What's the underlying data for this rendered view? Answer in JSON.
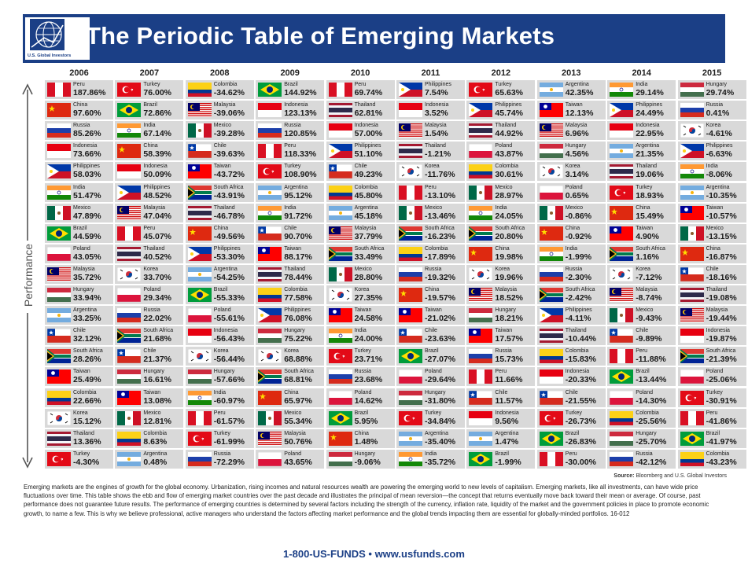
{
  "header": {
    "title": "The Periodic Table of Emerging Markets",
    "logo_text": "U.S. Global Investors",
    "bg_color": "#1b3f86"
  },
  "axis_label": "Performance",
  "years": [
    "2006",
    "2007",
    "2008",
    "2009",
    "2010",
    "2011",
    "2012",
    "2013",
    "2014",
    "2015"
  ],
  "columns": [
    [
      [
        "Peru",
        "187.86%"
      ],
      [
        "China",
        "97.60%"
      ],
      [
        "Russia",
        "85.26%"
      ],
      [
        "Indonesia",
        "73.66%"
      ],
      [
        "Philippines",
        "58.03%"
      ],
      [
        "India",
        "51.47%"
      ],
      [
        "Mexico",
        "47.89%"
      ],
      [
        "Brazil",
        "44.59%"
      ],
      [
        "Poland",
        "43.05%"
      ],
      [
        "Malaysia",
        "35.72%"
      ],
      [
        "Hungary",
        "33.94%"
      ],
      [
        "Argentina",
        "33.25%"
      ],
      [
        "Chile",
        "32.12%"
      ],
      [
        "South Africa",
        "28.26%"
      ],
      [
        "Taiwan",
        "25.49%"
      ],
      [
        "Colombia",
        "22.66%"
      ],
      [
        "Korea",
        "15.12%"
      ],
      [
        "Thailand",
        "13.36%"
      ],
      [
        "Turkey",
        "-4.30%"
      ]
    ],
    [
      [
        "Turkey",
        "76.00%"
      ],
      [
        "Brazil",
        "72.86%"
      ],
      [
        "India",
        "67.14%"
      ],
      [
        "China",
        "58.39%"
      ],
      [
        "Indonesia",
        "50.09%"
      ],
      [
        "Philippines",
        "48.52%"
      ],
      [
        "Malaysia",
        "47.04%"
      ],
      [
        "Peru",
        "45.07%"
      ],
      [
        "Thailand",
        "40.52%"
      ],
      [
        "Korea",
        "33.70%"
      ],
      [
        "Poland",
        "29.34%"
      ],
      [
        "Russia",
        "22.02%"
      ],
      [
        "South Africa",
        "21.68%"
      ],
      [
        "Chile",
        "21.37%"
      ],
      [
        "Hungary",
        "16.61%"
      ],
      [
        "Taiwan",
        "13.08%"
      ],
      [
        "Mexico",
        "12.81%"
      ],
      [
        "Colombia",
        "8.63%"
      ],
      [
        "Argentina",
        "0.48%"
      ]
    ],
    [
      [
        "Colombia",
        "-34.62%"
      ],
      [
        "Malaysia",
        "-39.06%"
      ],
      [
        "Mexico",
        "-39.28%"
      ],
      [
        "Chile",
        "-39.63%"
      ],
      [
        "Taiwan",
        "-43.72%"
      ],
      [
        "South Africa",
        "-43.91%"
      ],
      [
        "Thailand",
        "-46.78%"
      ],
      [
        "China",
        "-49.56%"
      ],
      [
        "Philippines",
        "-53.30%"
      ],
      [
        "Argentina",
        "-54.25%"
      ],
      [
        "Brazil",
        "-55.33%"
      ],
      [
        "Poland",
        "-55.61%"
      ],
      [
        "Indonesia",
        "-56.43%"
      ],
      [
        "Korea",
        "-56.44%"
      ],
      [
        "Hungary",
        "-57.66%"
      ],
      [
        "India",
        "-60.97%"
      ],
      [
        "Peru",
        "-61.57%"
      ],
      [
        "Turkey",
        "-61.99%"
      ],
      [
        "Russia",
        "-72.29%"
      ]
    ],
    [
      [
        "Brazil",
        "144.92%"
      ],
      [
        "Indonesia",
        "123.13%"
      ],
      [
        "Russia",
        "120.85%"
      ],
      [
        "Peru",
        "118.33%"
      ],
      [
        "Turkey",
        "108.90%"
      ],
      [
        "Argentina",
        "95.12%"
      ],
      [
        "India",
        "91.72%"
      ],
      [
        "Chile",
        "90.70%"
      ],
      [
        "Taiwan",
        "88.17%"
      ],
      [
        "Thailand",
        "78.44%"
      ],
      [
        "Colombia",
        "77.58%"
      ],
      [
        "Philippines",
        "76.08%"
      ],
      [
        "Hungary",
        "75.22%"
      ],
      [
        "Korea",
        "68.88%"
      ],
      [
        "South Africa",
        "68.81%"
      ],
      [
        "China",
        "65.97%"
      ],
      [
        "Mexico",
        "55.34%"
      ],
      [
        "Malaysia",
        "50.76%"
      ],
      [
        "Poland",
        "43.65%"
      ]
    ],
    [
      [
        "Peru",
        "69.74%"
      ],
      [
        "Thailand",
        "62.81%"
      ],
      [
        "Indonesia",
        "57.00%"
      ],
      [
        "Philippines",
        "51.10%"
      ],
      [
        "Chile",
        "49.23%"
      ],
      [
        "Colombia",
        "45.80%"
      ],
      [
        "Argentina",
        "45.18%"
      ],
      [
        "Malaysia",
        "37.79%"
      ],
      [
        "South Africa",
        "33.49%"
      ],
      [
        "Mexico",
        "28.80%"
      ],
      [
        "Korea",
        "27.35%"
      ],
      [
        "Taiwan",
        "24.58%"
      ],
      [
        "India",
        "24.00%"
      ],
      [
        "Turkey",
        "23.71%"
      ],
      [
        "Russia",
        "23.68%"
      ],
      [
        "Poland",
        "14.62%"
      ],
      [
        "Brazil",
        "5.95%"
      ],
      [
        "China",
        "1.48%"
      ],
      [
        "Hungary",
        "-9.06%"
      ]
    ],
    [
      [
        "Philippines",
        "7.54%"
      ],
      [
        "Indonesia",
        "3.52%"
      ],
      [
        "Malaysia",
        "1.54%"
      ],
      [
        "Thailand",
        "-1.21%"
      ],
      [
        "Korea",
        "-11.76%"
      ],
      [
        "Peru",
        "-13.10%"
      ],
      [
        "Mexico",
        "-13.46%"
      ],
      [
        "South Africa",
        "-16.23%"
      ],
      [
        "Colombia",
        "-17.89%"
      ],
      [
        "Russia",
        "-19.32%"
      ],
      [
        "China",
        "-19.57%"
      ],
      [
        "Taiwan",
        "-21.02%"
      ],
      [
        "Chile",
        "-23.63%"
      ],
      [
        "Brazil",
        "-27.07%"
      ],
      [
        "Poland",
        "-29.64%"
      ],
      [
        "Hungary",
        "-31.80%"
      ],
      [
        "Turkey",
        "-34.84%"
      ],
      [
        "Argentina",
        "-35.40%"
      ],
      [
        "India",
        "-35.72%"
      ]
    ],
    [
      [
        "Turkey",
        "65.63%"
      ],
      [
        "Philippines",
        "45.74%"
      ],
      [
        "Thailand",
        "44.92%"
      ],
      [
        "Poland",
        "43.87%"
      ],
      [
        "Colombia",
        "30.61%"
      ],
      [
        "Mexico",
        "28.97%"
      ],
      [
        "India",
        "24.05%"
      ],
      [
        "South Africa",
        "20.80%"
      ],
      [
        "China",
        "19.98%"
      ],
      [
        "Korea",
        "19.96%"
      ],
      [
        "Malaysia",
        "18.52%"
      ],
      [
        "Hungary",
        "18.21%"
      ],
      [
        "Taiwan",
        "17.57%"
      ],
      [
        "Russia",
        "15.73%"
      ],
      [
        "Peru",
        "11.66%"
      ],
      [
        "Chile",
        "11.57%"
      ],
      [
        "Indonesia",
        "9.56%"
      ],
      [
        "Argentina",
        "1.47%"
      ],
      [
        "Brazil",
        "-1.99%"
      ]
    ],
    [
      [
        "Argentina",
        "42.35%"
      ],
      [
        "Taiwan",
        "12.13%"
      ],
      [
        "Malaysia",
        "6.96%"
      ],
      [
        "Hungary",
        "4.56%"
      ],
      [
        "Korea",
        "3.14%"
      ],
      [
        "Poland",
        "0.65%"
      ],
      [
        "Mexico",
        "-0.86%"
      ],
      [
        "China",
        "-0.92%"
      ],
      [
        "India",
        "-1.99%"
      ],
      [
        "Russia",
        "-2.30%"
      ],
      [
        "South Africa",
        "-2.42%"
      ],
      [
        "Philippines",
        "-4.11%"
      ],
      [
        "Thailand",
        "-10.44%"
      ],
      [
        "Colombia",
        "-15.83%"
      ],
      [
        "Indonesia",
        "-20.33%"
      ],
      [
        "Chile",
        "-21.55%"
      ],
      [
        "Turkey",
        "-26.73%"
      ],
      [
        "Brazil",
        "-26.83%"
      ],
      [
        "Peru",
        "-30.00%"
      ]
    ],
    [
      [
        "India",
        "29.14%"
      ],
      [
        "Philippines",
        "24.49%"
      ],
      [
        "Indonesia",
        "22.95%"
      ],
      [
        "Argentina",
        "21.35%"
      ],
      [
        "Thailand",
        "19.06%"
      ],
      [
        "Turkey",
        "18.93%"
      ],
      [
        "China",
        "15.49%"
      ],
      [
        "Taiwan",
        "4.90%"
      ],
      [
        "South Africa",
        "1.16%"
      ],
      [
        "Korea",
        "-7.12%"
      ],
      [
        "Malaysia",
        "-8.74%"
      ],
      [
        "Mexico",
        "-9.43%"
      ],
      [
        "Chile",
        "-9.89%"
      ],
      [
        "Peru",
        "-11.88%"
      ],
      [
        "Brazil",
        "-13.44%"
      ],
      [
        "Poland",
        "-14.30%"
      ],
      [
        "Colombia",
        "-25.56%"
      ],
      [
        "Hungary",
        "-25.70%"
      ],
      [
        "Russia",
        "-42.12%"
      ]
    ],
    [
      [
        "Hungary",
        "29.74%"
      ],
      [
        "Russia",
        "0.41%"
      ],
      [
        "Korea",
        "-4.61%"
      ],
      [
        "Philippines",
        "-6.63%"
      ],
      [
        "India",
        "-8.06%"
      ],
      [
        "Argentina",
        "-10.35%"
      ],
      [
        "Taiwan",
        "-10.57%"
      ],
      [
        "Mexico",
        "-13.15%"
      ],
      [
        "China",
        "-16.87%"
      ],
      [
        "Chile",
        "-18.16%"
      ],
      [
        "Thailand",
        "-19.08%"
      ],
      [
        "Malaysia",
        "-19.44%"
      ],
      [
        "Indonesia",
        "-19.87%"
      ],
      [
        "South Africa",
        "-21.39%"
      ],
      [
        "Poland",
        "-25.06%"
      ],
      [
        "Turkey",
        "-30.91%"
      ],
      [
        "Peru",
        "-41.86%"
      ],
      [
        "Brazil",
        "-41.97%"
      ],
      [
        "Colombia",
        "-43.23%"
      ]
    ]
  ],
  "flag_icons": {
    "Peru": "peru-flag-icon",
    "China": "china-flag-icon",
    "Russia": "russia-flag-icon",
    "Indonesia": "indonesia-flag-icon",
    "Philippines": "philippines-flag-icon",
    "India": "india-flag-icon",
    "Mexico": "mexico-flag-icon",
    "Brazil": "brazil-flag-icon",
    "Poland": "poland-flag-icon",
    "Malaysia": "malaysia-flag-icon",
    "Hungary": "hungary-flag-icon",
    "Argentina": "argentina-flag-icon",
    "Chile": "chile-flag-icon",
    "South Africa": "south-africa-flag-icon",
    "Taiwan": "taiwan-flag-icon",
    "Colombia": "colombia-flag-icon",
    "Korea": "korea-flag-icon",
    "Thailand": "thailand-flag-icon",
    "Turkey": "turkey-flag-icon"
  },
  "source_label": "Source:",
  "source_text": "Bloomberg and U.S. Global Investors",
  "body_text": "Emerging markets are the engines of growth for the global economy. Urbanization, rising incomes and natural resources wealth are powering the emerging world to new levels of capitalism. Emerging markets, like all investments, can have wide price fluctuations over time. This table shows the ebb and flow of emerging market countries over the past decade and illustrates the principal of mean reversion—the concept that returns eventually move back toward their mean or average. Of course, past performance does not guarantee future results. The performance of emerging countries is determined by several factors including the strength of the currency, inflation rate, liquidity of the market and the government policies in place to promote economic growth, to name a few. This is why we believe professional, active managers who understand the factors affecting market performance and the global trends impacting them are essential for globally-minded portfolios. 16-012",
  "footer": "1-800-US-FUNDS  •  www.usfunds.com"
}
